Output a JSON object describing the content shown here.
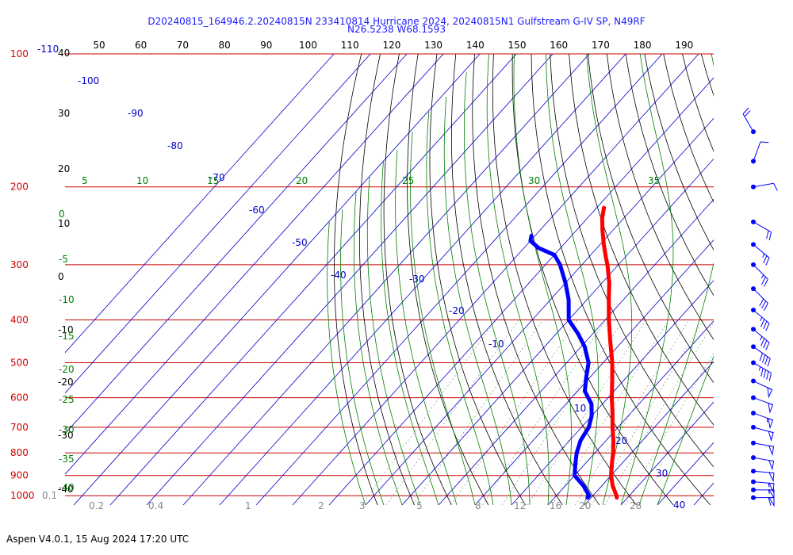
{
  "header": {
    "line1": "D20240815_164946.2.20240815N 233410814 Hurricane 2024, 20240815N1 Gulfstream G-IV SP, N49RF",
    "line2": "N26.5238 W68.1593"
  },
  "footer": {
    "text": "Aspen V4.0.1, 15 Aug 2024  17:20 UTC"
  },
  "colors": {
    "isobar": "#cc0000",
    "isotherm": "#0000cc",
    "dry_adiabat": "#000000",
    "moist_adiabat": "#008000",
    "mixing_ratio": "#008000",
    "temperature": "#ff0000",
    "dewpoint": "#0000ff",
    "title": "#1a1aff"
  },
  "chart_data": {
    "type": "skew-t",
    "pressure_axis": {
      "labels": [
        "100",
        "200",
        "300",
        "400",
        "500",
        "600",
        "700",
        "800",
        "900",
        "1000"
      ],
      "extra_top_label": "-110"
    },
    "top_axis": {
      "labels": [
        "50",
        "60",
        "70",
        "80",
        "90",
        "100",
        "110",
        "120",
        "130",
        "140",
        "150",
        "160",
        "170",
        "180",
        "190"
      ]
    },
    "dry_adiabat_labels": [
      "40",
      "30",
      "20",
      "10",
      "0",
      "-10",
      "-20",
      "-30",
      "-40"
    ],
    "moist_adiabat_labels_top": [
      "5",
      "10",
      "15",
      "20",
      "25",
      "30",
      "35"
    ],
    "moist_adiabat_labels_left": [
      "0",
      "-5",
      "-10",
      "-15",
      "-20",
      "-25",
      "-30",
      "-35",
      "-40"
    ],
    "isotherm_labels": [
      "-100",
      "-90",
      "-80",
      "-70",
      "-60",
      "-50",
      "-40",
      "-30",
      "-20",
      "-10",
      "10",
      "20",
      "30",
      "40"
    ],
    "mixing_ratio_labels": [
      "0.1",
      "0.2",
      "0.4",
      "1",
      "2",
      "3",
      "5",
      "8",
      "12",
      "16",
      "20",
      "28"
    ],
    "temperature_profile": [
      {
        "p": 223,
        "t": -48
      },
      {
        "p": 235,
        "t": -46
      },
      {
        "p": 250,
        "t": -43
      },
      {
        "p": 270,
        "t": -39
      },
      {
        "p": 290,
        "t": -35
      },
      {
        "p": 300,
        "t": -33
      },
      {
        "p": 330,
        "t": -28
      },
      {
        "p": 360,
        "t": -24
      },
      {
        "p": 400,
        "t": -19
      },
      {
        "p": 450,
        "t": -13
      },
      {
        "p": 500,
        "t": -7.5
      },
      {
        "p": 550,
        "t": -3
      },
      {
        "p": 600,
        "t": 1
      },
      {
        "p": 650,
        "t": 5
      },
      {
        "p": 700,
        "t": 8.5
      },
      {
        "p": 750,
        "t": 12
      },
      {
        "p": 800,
        "t": 15
      },
      {
        "p": 850,
        "t": 17.5
      },
      {
        "p": 900,
        "t": 20
      },
      {
        "p": 950,
        "t": 23
      },
      {
        "p": 1000,
        "t": 26.5
      },
      {
        "p": 1010,
        "t": 27
      }
    ],
    "dewpoint_profile": [
      {
        "p": 258,
        "t": -61
      },
      {
        "p": 265,
        "t": -60
      },
      {
        "p": 275,
        "t": -56
      },
      {
        "p": 285,
        "t": -50
      },
      {
        "p": 300,
        "t": -46
      },
      {
        "p": 330,
        "t": -40
      },
      {
        "p": 360,
        "t": -35
      },
      {
        "p": 400,
        "t": -30
      },
      {
        "p": 430,
        "t": -24
      },
      {
        "p": 460,
        "t": -19
      },
      {
        "p": 500,
        "t": -14
      },
      {
        "p": 540,
        "t": -11
      },
      {
        "p": 580,
        "t": -8
      },
      {
        "p": 620,
        "t": -3
      },
      {
        "p": 660,
        "t": 0
      },
      {
        "p": 700,
        "t": 2
      },
      {
        "p": 750,
        "t": 3
      },
      {
        "p": 800,
        "t": 5
      },
      {
        "p": 850,
        "t": 7.5
      },
      {
        "p": 900,
        "t": 10
      },
      {
        "p": 950,
        "t": 15
      },
      {
        "p": 1000,
        "t": 19
      },
      {
        "p": 1010,
        "t": 19
      }
    ],
    "wind_barbs": [
      {
        "p": 150,
        "dir": 330,
        "spd": 20
      },
      {
        "p": 175,
        "dir": 20,
        "spd": 10
      },
      {
        "p": 200,
        "dir": 80,
        "spd": 10
      },
      {
        "p": 240,
        "dir": 120,
        "spd": 20
      },
      {
        "p": 270,
        "dir": 130,
        "spd": 25
      },
      {
        "p": 300,
        "dir": 135,
        "spd": 25
      },
      {
        "p": 340,
        "dir": 135,
        "spd": 30
      },
      {
        "p": 380,
        "dir": 130,
        "spd": 35
      },
      {
        "p": 420,
        "dir": 130,
        "spd": 35
      },
      {
        "p": 460,
        "dir": 125,
        "spd": 40
      },
      {
        "p": 500,
        "dir": 120,
        "spd": 45
      },
      {
        "p": 550,
        "dir": 115,
        "spd": 50
      },
      {
        "p": 600,
        "dir": 110,
        "spd": 50
      },
      {
        "p": 650,
        "dir": 110,
        "spd": 55
      },
      {
        "p": 700,
        "dir": 105,
        "spd": 50
      },
      {
        "p": 760,
        "dir": 100,
        "spd": 50
      },
      {
        "p": 820,
        "dir": 100,
        "spd": 50
      },
      {
        "p": 880,
        "dir": 95,
        "spd": 50
      },
      {
        "p": 930,
        "dir": 95,
        "spd": 55
      },
      {
        "p": 970,
        "dir": 90,
        "spd": 55
      },
      {
        "p": 1010,
        "dir": 90,
        "spd": 60
      }
    ]
  }
}
